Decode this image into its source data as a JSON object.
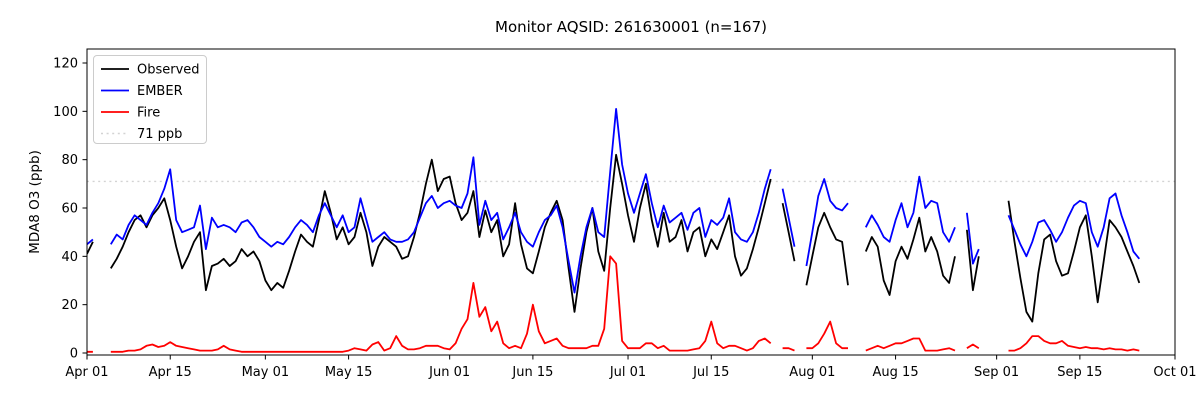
{
  "chart": {
    "title": "Monitor AQSID: 261630001 (n=167)",
    "y_axis": {
      "label": "MDA8 O3 (ppb)",
      "ticks": [
        0,
        20,
        40,
        60,
        80,
        100,
        120
      ]
    },
    "x_axis": {
      "ticks": [
        {
          "label": "Apr 01",
          "day": 0
        },
        {
          "label": "Apr 15",
          "day": 14
        },
        {
          "label": "May 01",
          "day": 30
        },
        {
          "label": "May 15",
          "day": 44
        },
        {
          "label": "Jun 01",
          "day": 61
        },
        {
          "label": "Jun 15",
          "day": 75
        },
        {
          "label": "Jul 01",
          "day": 91
        },
        {
          "label": "Jul 15",
          "day": 105
        },
        {
          "label": "Aug 01",
          "day": 122
        },
        {
          "label": "Aug 15",
          "day": 136
        },
        {
          "label": "Sep 01",
          "day": 153
        },
        {
          "label": "Sep 15",
          "day": 167
        },
        {
          "label": "Oct 01",
          "day": 183
        }
      ]
    },
    "legend": {
      "items": [
        {
          "label": "Observed",
          "color": "#000000",
          "dashed": false
        },
        {
          "label": "EMBER",
          "color": "#0000ff",
          "dashed": false
        },
        {
          "label": "Fire",
          "color": "#ff0000",
          "dashed": false
        },
        {
          "label": "71 ppb",
          "color": "#d3d3d3",
          "dashed": true
        }
      ]
    },
    "threshold": {
      "value": 71,
      "label": "71 ppb",
      "color": "#d3d3d3"
    }
  },
  "chart_data": {
    "type": "line",
    "title": "Monitor AQSID: 261630001 (n=167)",
    "xlabel": "",
    "ylabel": "MDA8 O3 (ppb)",
    "ylim": [
      0,
      126
    ],
    "x_start": "Apr 01",
    "x_end": "Oct 01",
    "x_total_days": 183,
    "n_points": 167,
    "threshold_ppb": 71,
    "grid": false,
    "legend_position": "upper left",
    "series": [
      {
        "name": "Observed",
        "color": "#000000",
        "values": [
          41,
          46,
          null,
          null,
          35,
          39,
          44,
          50,
          55,
          57,
          52,
          57,
          60,
          64,
          55,
          44,
          35,
          40,
          46,
          50,
          26,
          36,
          37,
          39,
          36,
          38,
          43,
          40,
          42,
          38,
          30,
          26,
          29,
          27,
          34,
          42,
          49,
          46,
          44,
          55,
          67,
          58,
          47,
          52,
          45,
          48,
          58,
          50,
          36,
          44,
          48,
          46,
          44,
          39,
          40,
          48,
          58,
          70,
          80,
          67,
          72,
          73,
          62,
          55,
          58,
          67,
          48,
          59,
          50,
          55,
          40,
          45,
          62,
          45,
          35,
          33,
          42,
          52,
          58,
          63,
          55,
          35,
          17,
          35,
          50,
          60,
          42,
          34,
          60,
          82,
          70,
          57,
          46,
          60,
          70,
          55,
          44,
          58,
          46,
          48,
          55,
          42,
          50,
          52,
          40,
          47,
          43,
          50,
          57,
          40,
          32,
          35,
          43,
          52,
          62,
          72,
          null,
          62,
          50,
          38,
          null,
          28,
          40,
          52,
          58,
          52,
          47,
          46,
          28,
          null,
          null,
          42,
          48,
          44,
          30,
          24,
          38,
          44,
          39,
          47,
          56,
          42,
          48,
          42,
          32,
          29,
          40,
          null,
          51,
          26,
          40,
          null,
          null,
          null,
          null,
          63,
          46,
          31,
          17,
          13,
          33,
          47,
          49,
          38,
          32,
          33,
          42,
          52,
          57,
          40,
          21,
          38,
          55,
          52,
          48,
          42,
          36,
          29,
          null,
          null,
          null,
          null,
          null
        ]
      },
      {
        "name": "EMBER",
        "color": "#0000ff",
        "values": [
          45,
          47,
          null,
          null,
          45,
          49,
          47,
          53,
          57,
          55,
          53,
          58,
          62,
          68,
          76,
          55,
          50,
          51,
          52,
          61,
          43,
          56,
          52,
          53,
          52,
          50,
          54,
          55,
          52,
          48,
          46,
          44,
          46,
          45,
          48,
          52,
          55,
          53,
          50,
          57,
          62,
          57,
          52,
          57,
          50,
          52,
          64,
          55,
          46,
          48,
          50,
          47,
          46,
          46,
          47,
          50,
          56,
          62,
          65,
          60,
          62,
          63,
          61,
          60,
          66,
          81,
          53,
          63,
          55,
          58,
          47,
          52,
          58,
          50,
          46,
          44,
          50,
          55,
          57,
          61,
          52,
          38,
          25,
          40,
          52,
          60,
          50,
          48,
          75,
          101,
          78,
          66,
          58,
          66,
          74,
          62,
          52,
          61,
          54,
          56,
          58,
          51,
          58,
          60,
          48,
          55,
          53,
          56,
          64,
          50,
          47,
          46,
          50,
          58,
          68,
          76,
          null,
          68,
          56,
          44,
          null,
          36,
          50,
          65,
          72,
          63,
          60,
          59,
          62,
          null,
          null,
          52,
          57,
          53,
          48,
          46,
          55,
          62,
          52,
          58,
          73,
          60,
          63,
          62,
          50,
          46,
          52,
          null,
          58,
          37,
          43,
          null,
          null,
          null,
          null,
          57,
          51,
          45,
          40,
          46,
          54,
          55,
          51,
          46,
          50,
          56,
          61,
          63,
          62,
          50,
          44,
          52,
          64,
          66,
          57,
          50,
          42,
          39,
          null,
          null,
          null,
          null,
          null
        ]
      },
      {
        "name": "Fire",
        "color": "#ff0000",
        "values": [
          0.5,
          0.5,
          null,
          null,
          0.5,
          0.5,
          0.5,
          1,
          1,
          1.5,
          3,
          3.5,
          2.5,
          3,
          4.5,
          3,
          2.5,
          2,
          1.5,
          1,
          1,
          1,
          1.5,
          3,
          1.5,
          1,
          0.5,
          0.5,
          0.5,
          0.5,
          0.5,
          0.5,
          0.5,
          0.5,
          0.5,
          0.5,
          0.5,
          0.5,
          0.5,
          0.5,
          0.5,
          0.5,
          0.5,
          0.5,
          1,
          2,
          1.5,
          1,
          3.5,
          4.5,
          1,
          2,
          7,
          3,
          1.5,
          1.5,
          2,
          3,
          3,
          3,
          2,
          1.5,
          4,
          10,
          14,
          29,
          15,
          19,
          9,
          13,
          4,
          2,
          3,
          2,
          8,
          20,
          9,
          4,
          5,
          6,
          3,
          2,
          2,
          2,
          2,
          3,
          3,
          10,
          40,
          37,
          5,
          2,
          2,
          2,
          4,
          4,
          2,
          3,
          1,
          1,
          1,
          1,
          1.5,
          2,
          5,
          13,
          4,
          2,
          3,
          3,
          2,
          1,
          2,
          5,
          6,
          4,
          null,
          2,
          2,
          1,
          null,
          2,
          2,
          4,
          8,
          13,
          4,
          2,
          2,
          null,
          null,
          1,
          2,
          3,
          2,
          3,
          4,
          4,
          5,
          6,
          6,
          1,
          1,
          1,
          1.5,
          2,
          1,
          null,
          2,
          3.5,
          2,
          null,
          null,
          null,
          null,
          1,
          1,
          2,
          4,
          7,
          7,
          5,
          4,
          4,
          5,
          3,
          2.5,
          2,
          2.5,
          2,
          2,
          1.5,
          2,
          1.5,
          1.5,
          1,
          1.5,
          1,
          null,
          null,
          null,
          null,
          null
        ]
      }
    ]
  }
}
